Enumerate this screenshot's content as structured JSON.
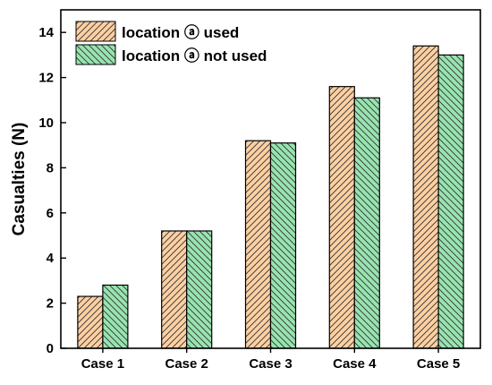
{
  "chart_data": {
    "type": "bar",
    "title": "",
    "xlabel": "",
    "ylabel": "Casualties (N)",
    "categories": [
      "Case 1",
      "Case 2",
      "Case 3",
      "Case 4",
      "Case 5"
    ],
    "series": [
      {
        "name": "location ⓐ used",
        "values": [
          2.3,
          5.2,
          9.2,
          11.6,
          13.4
        ],
        "fill": "#fdd0a2",
        "hatch": "forward"
      },
      {
        "name": "location ⓐ not used",
        "values": [
          2.8,
          5.2,
          9.1,
          11.1,
          13.0
        ],
        "fill": "#98e4b0",
        "hatch": "back"
      }
    ],
    "ylim": [
      0,
      15
    ],
    "yticks": [
      0,
      2,
      4,
      6,
      8,
      10,
      12,
      14
    ],
    "legend": "top-left",
    "grid": false
  }
}
